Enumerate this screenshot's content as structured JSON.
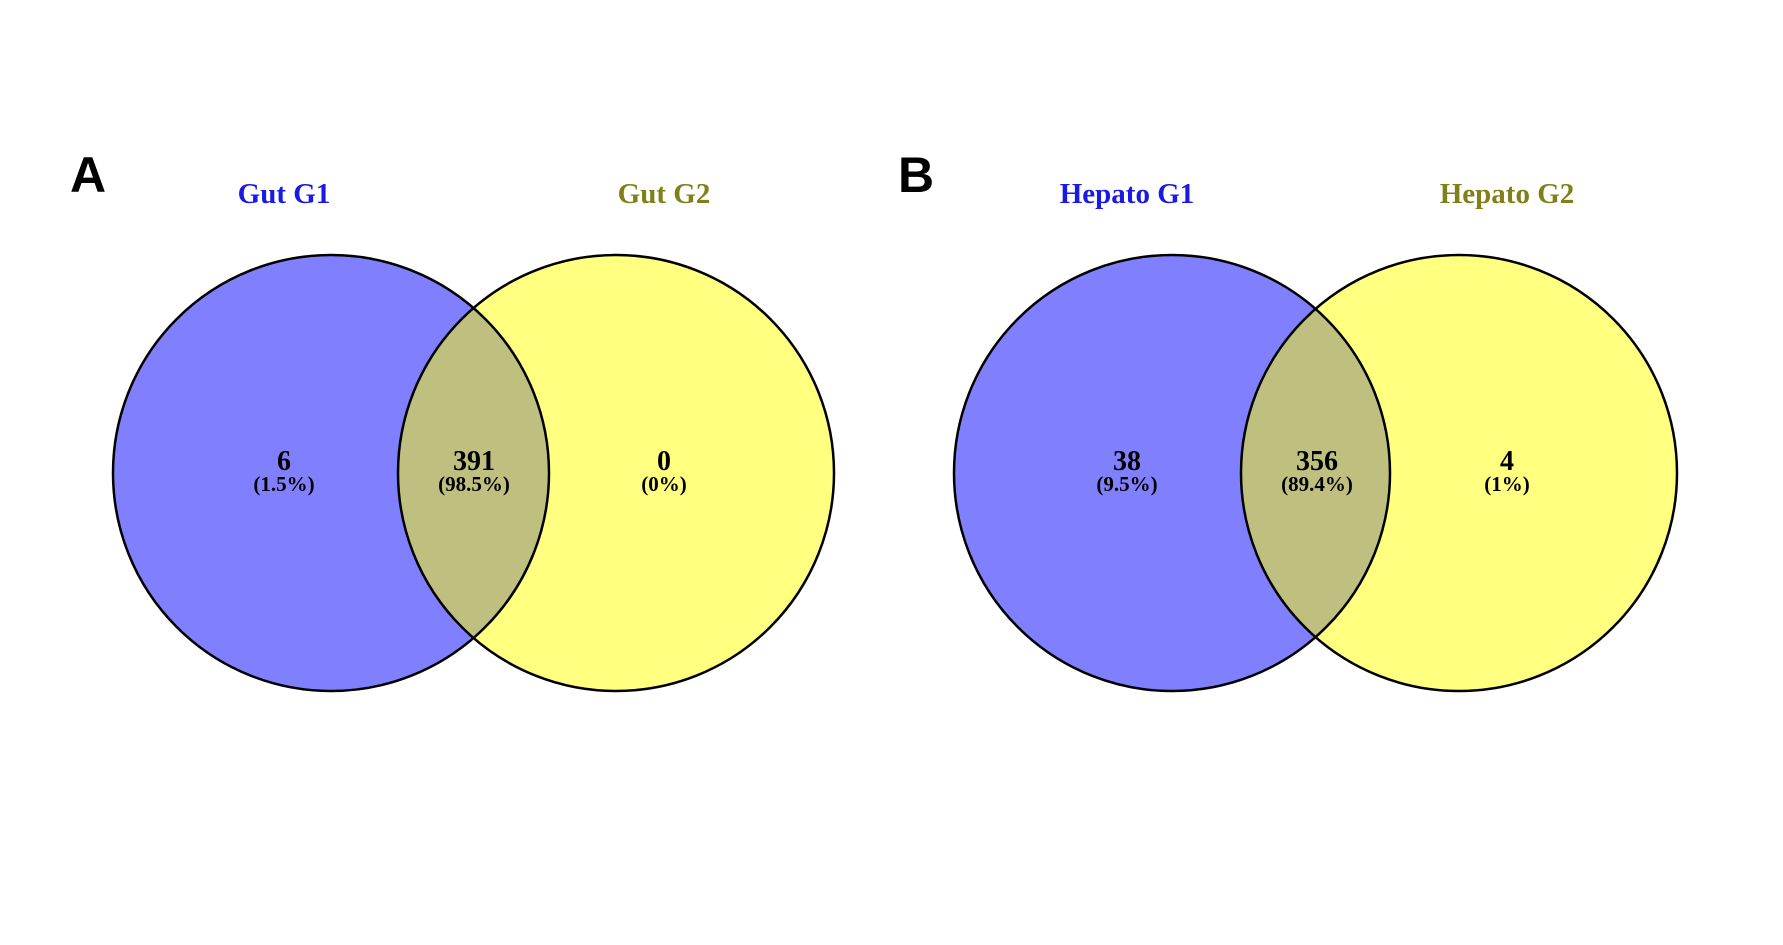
{
  "colors": {
    "set1_fill": "#8080ff",
    "set2_fill": "#ffff80",
    "overlap_fill": "#bfbf80",
    "set1_label": "#1a1ae6",
    "set2_label": "#808019",
    "outline": "#000000"
  },
  "panels": [
    {
      "letter": "A",
      "set1_name": "Gut G1",
      "set2_name": "Gut G2",
      "only1": {
        "count": "6",
        "pct": "(1.5%)"
      },
      "both": {
        "count": "391",
        "pct": "(98.5%)"
      },
      "only2": {
        "count": "0",
        "pct": "(0%)"
      }
    },
    {
      "letter": "B",
      "set1_name": "Hepato G1",
      "set2_name": "Hepato G2",
      "only1": {
        "count": "38",
        "pct": "(9.5%)"
      },
      "both": {
        "count": "356",
        "pct": "(89.4%)"
      },
      "only2": {
        "count": "4",
        "pct": "(1%)"
      }
    }
  ]
}
